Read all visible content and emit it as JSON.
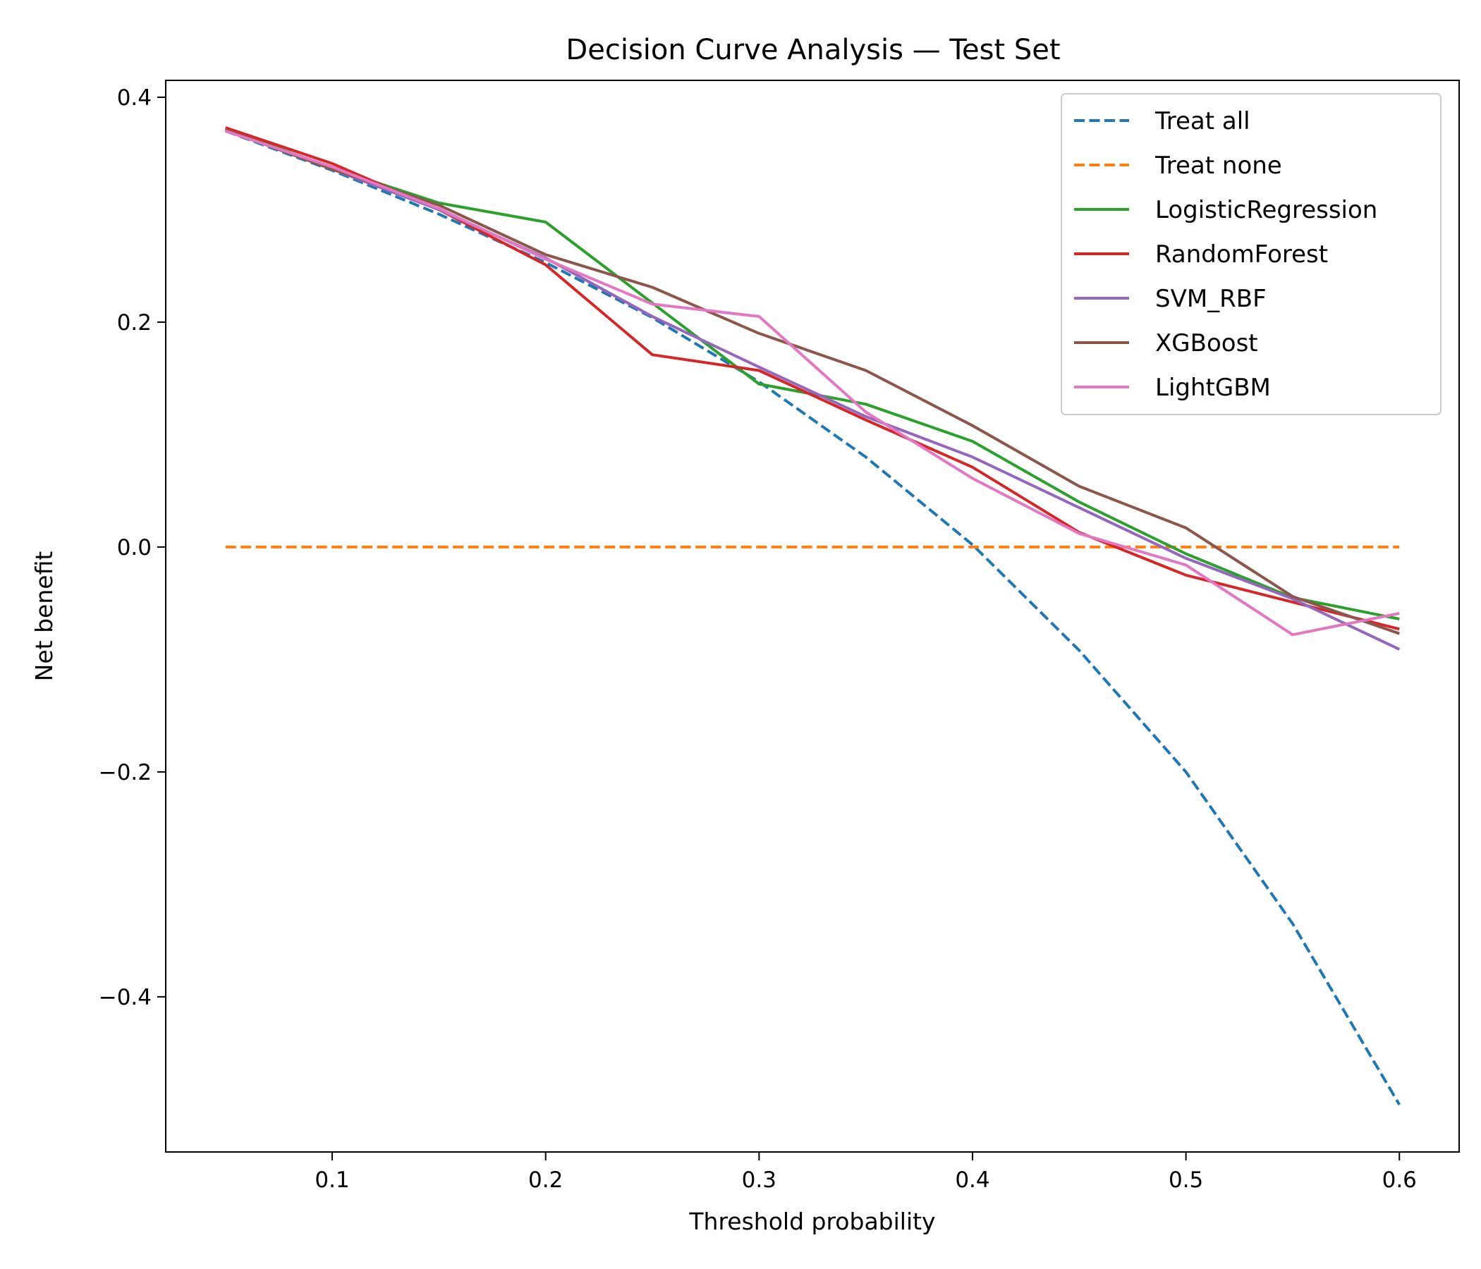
{
  "chart_data": {
    "type": "line",
    "title": "Decision Curve Analysis — Test Set",
    "xlabel": "Threshold probability",
    "ylabel": "Net benefit",
    "xlim": [
      0.022,
      0.628
    ],
    "ylim": [
      -0.538,
      0.415
    ],
    "xticks": [
      0.1,
      0.2,
      0.3,
      0.4,
      0.5,
      0.6
    ],
    "xtick_labels": [
      "0.1",
      "0.2",
      "0.3",
      "0.4",
      "0.5",
      "0.6"
    ],
    "yticks": [
      -0.4,
      -0.2,
      0.0,
      0.2,
      0.4
    ],
    "ytick_labels": [
      "−0.4",
      "−0.2",
      "0.0",
      "0.2",
      "0.4"
    ],
    "grid": false,
    "legend_position": "top-right",
    "x": [
      0.05,
      0.1,
      0.15,
      0.2,
      0.25,
      0.3,
      0.35,
      0.4,
      0.45,
      0.5,
      0.55,
      0.6
    ],
    "series": [
      {
        "name": "Treat all",
        "color": "#1f77b4",
        "dash": true,
        "values": [
          0.37,
          0.335,
          0.296,
          0.253,
          0.204,
          0.147,
          0.08,
          0.002,
          -0.092,
          -0.2,
          -0.335,
          -0.496
        ]
      },
      {
        "name": "Treat none",
        "color": "#ff7f0e",
        "dash": true,
        "values": [
          0,
          0,
          0,
          0,
          0,
          0,
          0,
          0,
          0,
          0,
          0,
          0
        ]
      },
      {
        "name": "LogisticRegression",
        "color": "#2ca02c",
        "dash": false,
        "values": [
          0.372,
          0.337,
          0.306,
          0.289,
          0.217,
          0.145,
          0.127,
          0.094,
          0.04,
          -0.006,
          -0.045,
          -0.064
        ]
      },
      {
        "name": "RandomForest",
        "color": "#d62728",
        "dash": false,
        "values": [
          0.373,
          0.341,
          0.3,
          0.251,
          0.171,
          0.157,
          0.113,
          0.071,
          0.013,
          -0.025,
          -0.049,
          -0.073
        ]
      },
      {
        "name": "SVM_RBF",
        "color": "#9467bd",
        "dash": false,
        "values": [
          0.371,
          0.336,
          0.3,
          0.257,
          0.205,
          0.16,
          0.116,
          0.08,
          0.035,
          -0.01,
          -0.046,
          -0.091
        ]
      },
      {
        "name": "XGBoost",
        "color": "#8c564b",
        "dash": false,
        "values": [
          0.371,
          0.336,
          0.304,
          0.26,
          0.231,
          0.19,
          0.157,
          0.108,
          0.054,
          0.017,
          -0.044,
          -0.077
        ]
      },
      {
        "name": "LightGBM",
        "color": "#e377c2",
        "dash": false,
        "values": [
          0.37,
          0.338,
          0.301,
          0.256,
          0.216,
          0.205,
          0.12,
          0.061,
          0.012,
          -0.016,
          -0.078,
          -0.059
        ]
      }
    ]
  }
}
